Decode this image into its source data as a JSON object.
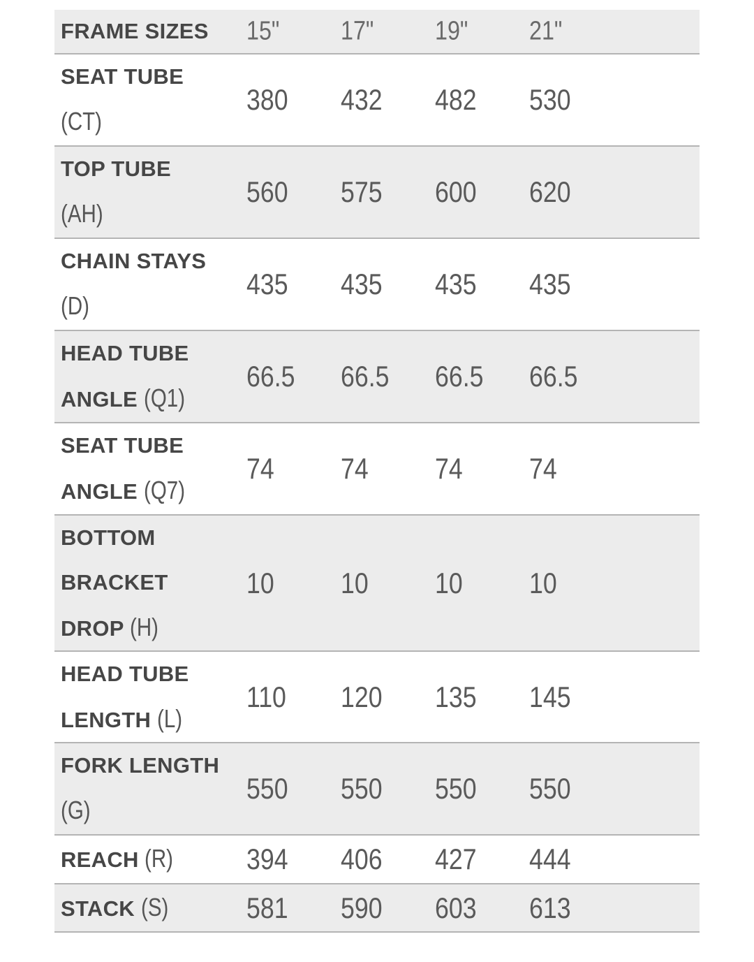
{
  "table": {
    "header": {
      "label": "FRAME SIZES",
      "sizes": [
        "15\"",
        "17\"",
        "19\"",
        "21\""
      ]
    },
    "rows": [
      {
        "name": "SEAT TUBE",
        "code": "(CT)",
        "values": [
          "380",
          "432",
          "482",
          "530"
        ]
      },
      {
        "name": "TOP TUBE",
        "code": "(AH)",
        "values": [
          "560",
          "575",
          "600",
          "620"
        ]
      },
      {
        "name": "CHAIN STAYS",
        "code": "(D)",
        "values": [
          "435",
          "435",
          "435",
          "435"
        ]
      },
      {
        "name": "HEAD TUBE ANGLE",
        "code": "(Q1)",
        "values": [
          "66.5",
          "66.5",
          "66.5",
          "66.5"
        ]
      },
      {
        "name": "SEAT TUBE ANGLE",
        "code": "(Q7)",
        "values": [
          "74",
          "74",
          "74",
          "74"
        ]
      },
      {
        "name": "BOTTOM BRACKET DROP",
        "code": "(H)",
        "values": [
          "10",
          "10",
          "10",
          "10"
        ]
      },
      {
        "name": "HEAD TUBE LENGTH",
        "code": "(L)",
        "values": [
          "110",
          "120",
          "135",
          "145"
        ]
      },
      {
        "name": "FORK LENGTH",
        "code": "(G)",
        "values": [
          "550",
          "550",
          "550",
          "550"
        ]
      },
      {
        "name": "REACH",
        "code": "(R)",
        "values": [
          "394",
          "406",
          "427",
          "444"
        ]
      },
      {
        "name": "STACK",
        "code": "(S)",
        "values": [
          "581",
          "590",
          "603",
          "613"
        ]
      }
    ]
  },
  "colors": {
    "stripe": "#ececec",
    "divider": "#b4b4b4",
    "label": "#464646",
    "value": "#5a5a5a"
  }
}
